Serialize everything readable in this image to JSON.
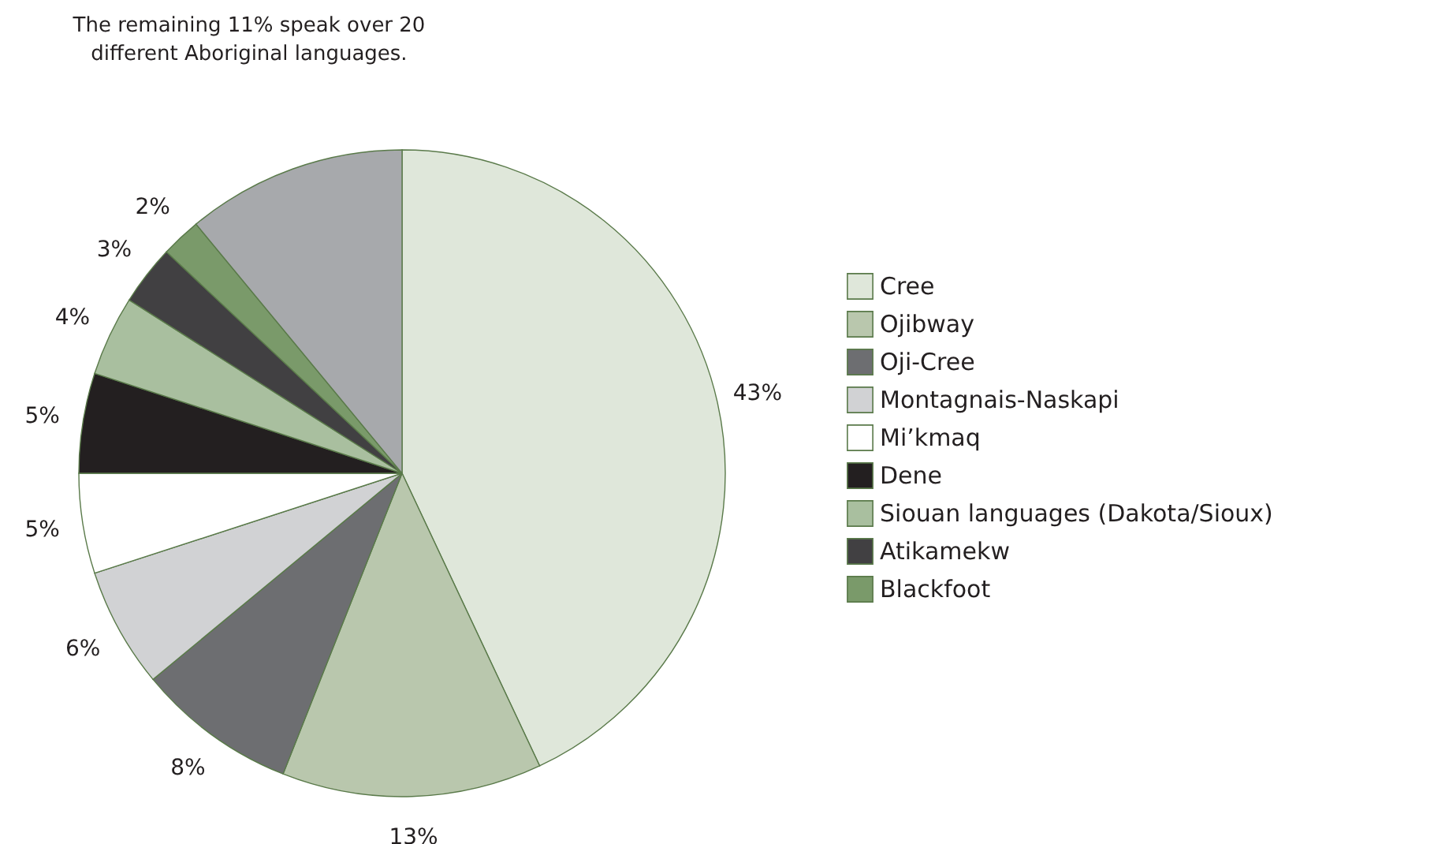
{
  "chart_data": {
    "type": "pie",
    "categories": [
      "Cree",
      "Ojibway",
      "Oji-Cree",
      "Montagnais-Naskapi",
      "Mi’kmaq",
      "Dene",
      "Siouan languages (Dakota/Sioux)",
      "Atikamekw",
      "Blackfoot",
      null
    ],
    "values": [
      43,
      13,
      8,
      6,
      5,
      5,
      4,
      3,
      2,
      11
    ],
    "colors": [
      "#dfe7da",
      "#b9c7ad",
      "#6d6e71",
      "#d1d2d4",
      "#ffffff",
      "#231f20",
      "#a9bf9f",
      "#414042",
      "#7a9a6a",
      "#a7a9ac"
    ],
    "value_labels": [
      "43%",
      "13%",
      "8%",
      "6%",
      "5%",
      "5%",
      "4%",
      "3%",
      "2%",
      null
    ],
    "legend": "right",
    "annotations": [
      "The remaining 11% speak over 20 different Aboriginal languages."
    ]
  }
}
